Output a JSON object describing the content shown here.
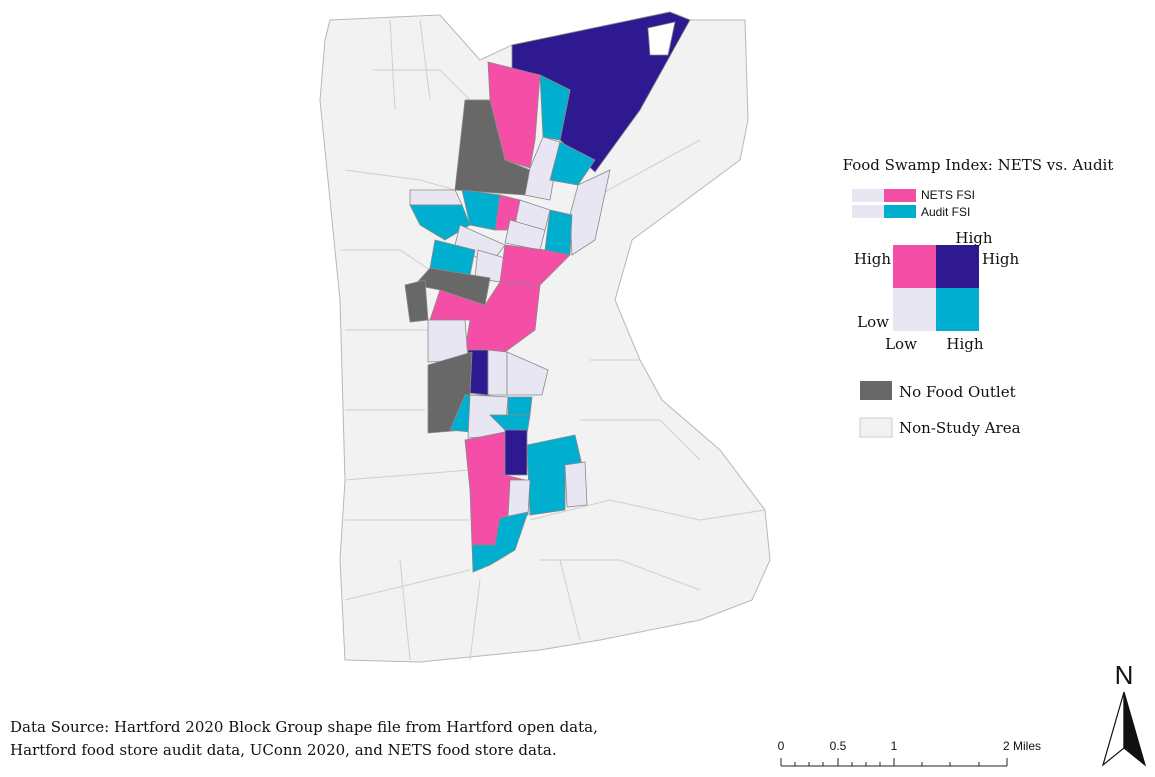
{
  "legend": {
    "title": "Food Swamp Index: NETS vs. Audit",
    "series": [
      "NETS FSI",
      "Audit FSI"
    ],
    "bivariate": {
      "corner_top": "High",
      "y_high": "High",
      "corner_right": "High",
      "y_low": "Low",
      "x_low": "Low",
      "x_high": "High"
    },
    "classes": [
      "No Food Outlet",
      "Non-Study Area"
    ]
  },
  "source": [
    "Data Source: Hartford 2020 Block Group shape file from Hartford open data,",
    "Hartford food store audit data, UConn 2020, and NETS food store data."
  ],
  "scale": [
    "0",
    "0.5",
    "1",
    "2 Miles"
  ],
  "north": "N"
}
